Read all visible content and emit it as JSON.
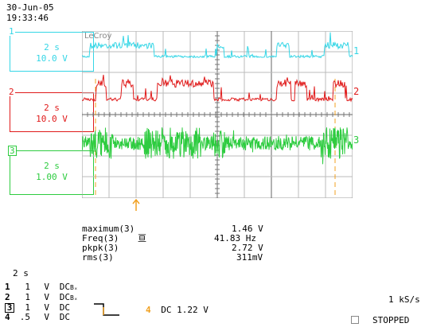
{
  "header": {
    "date": "30-Jun-05",
    "time": "19:33:46"
  },
  "brand": "LeCroy",
  "traces": [
    {
      "id": "1",
      "time_div": "2 s",
      "volts_div": "10.0 V",
      "color": "#35d6e6"
    },
    {
      "id": "2",
      "time_div": "2 s",
      "volts_div": "10.0 V",
      "color": "#e01a1a"
    },
    {
      "id": "3",
      "time_div": "2 s",
      "volts_div": "1.00 V",
      "color": "#2ecc40"
    }
  ],
  "measurements": [
    {
      "label": "maximum(3)",
      "extra": "",
      "value": "1.46 V"
    },
    {
      "label": "Freq(3)",
      "extra": "亘",
      "value": "41.83 Hz"
    },
    {
      "label": "pkpk(3)",
      "extra": "",
      "value": "2.72 V"
    },
    {
      "label": "rms(3)",
      "extra": "",
      "value": "311mV"
    }
  ],
  "timebase": "2 s",
  "channels": [
    {
      "num": "1",
      "scale": "1",
      "unit": "V",
      "coupling": "DC",
      "bw": "Bₓ"
    },
    {
      "num": "2",
      "scale": "1",
      "unit": "V",
      "coupling": "DC",
      "bw": "Bₓ"
    },
    {
      "num": "3",
      "scale": "1",
      "unit": "V",
      "coupling": "DC",
      "bw": ""
    },
    {
      "num": "4",
      "scale": ".5",
      "unit": "V",
      "coupling": "DC",
      "bw": ""
    }
  ],
  "trigger": {
    "channel": "4",
    "coupling": "DC",
    "level": "1.22 V"
  },
  "sample_rate": "1 kS/s",
  "status": "STOPPED",
  "colors": {
    "ch1": "#35d6e6",
    "ch2": "#e01a1a",
    "ch3": "#2ecc40",
    "cursor": "#f0a020",
    "grid": "#9a9a9a"
  }
}
